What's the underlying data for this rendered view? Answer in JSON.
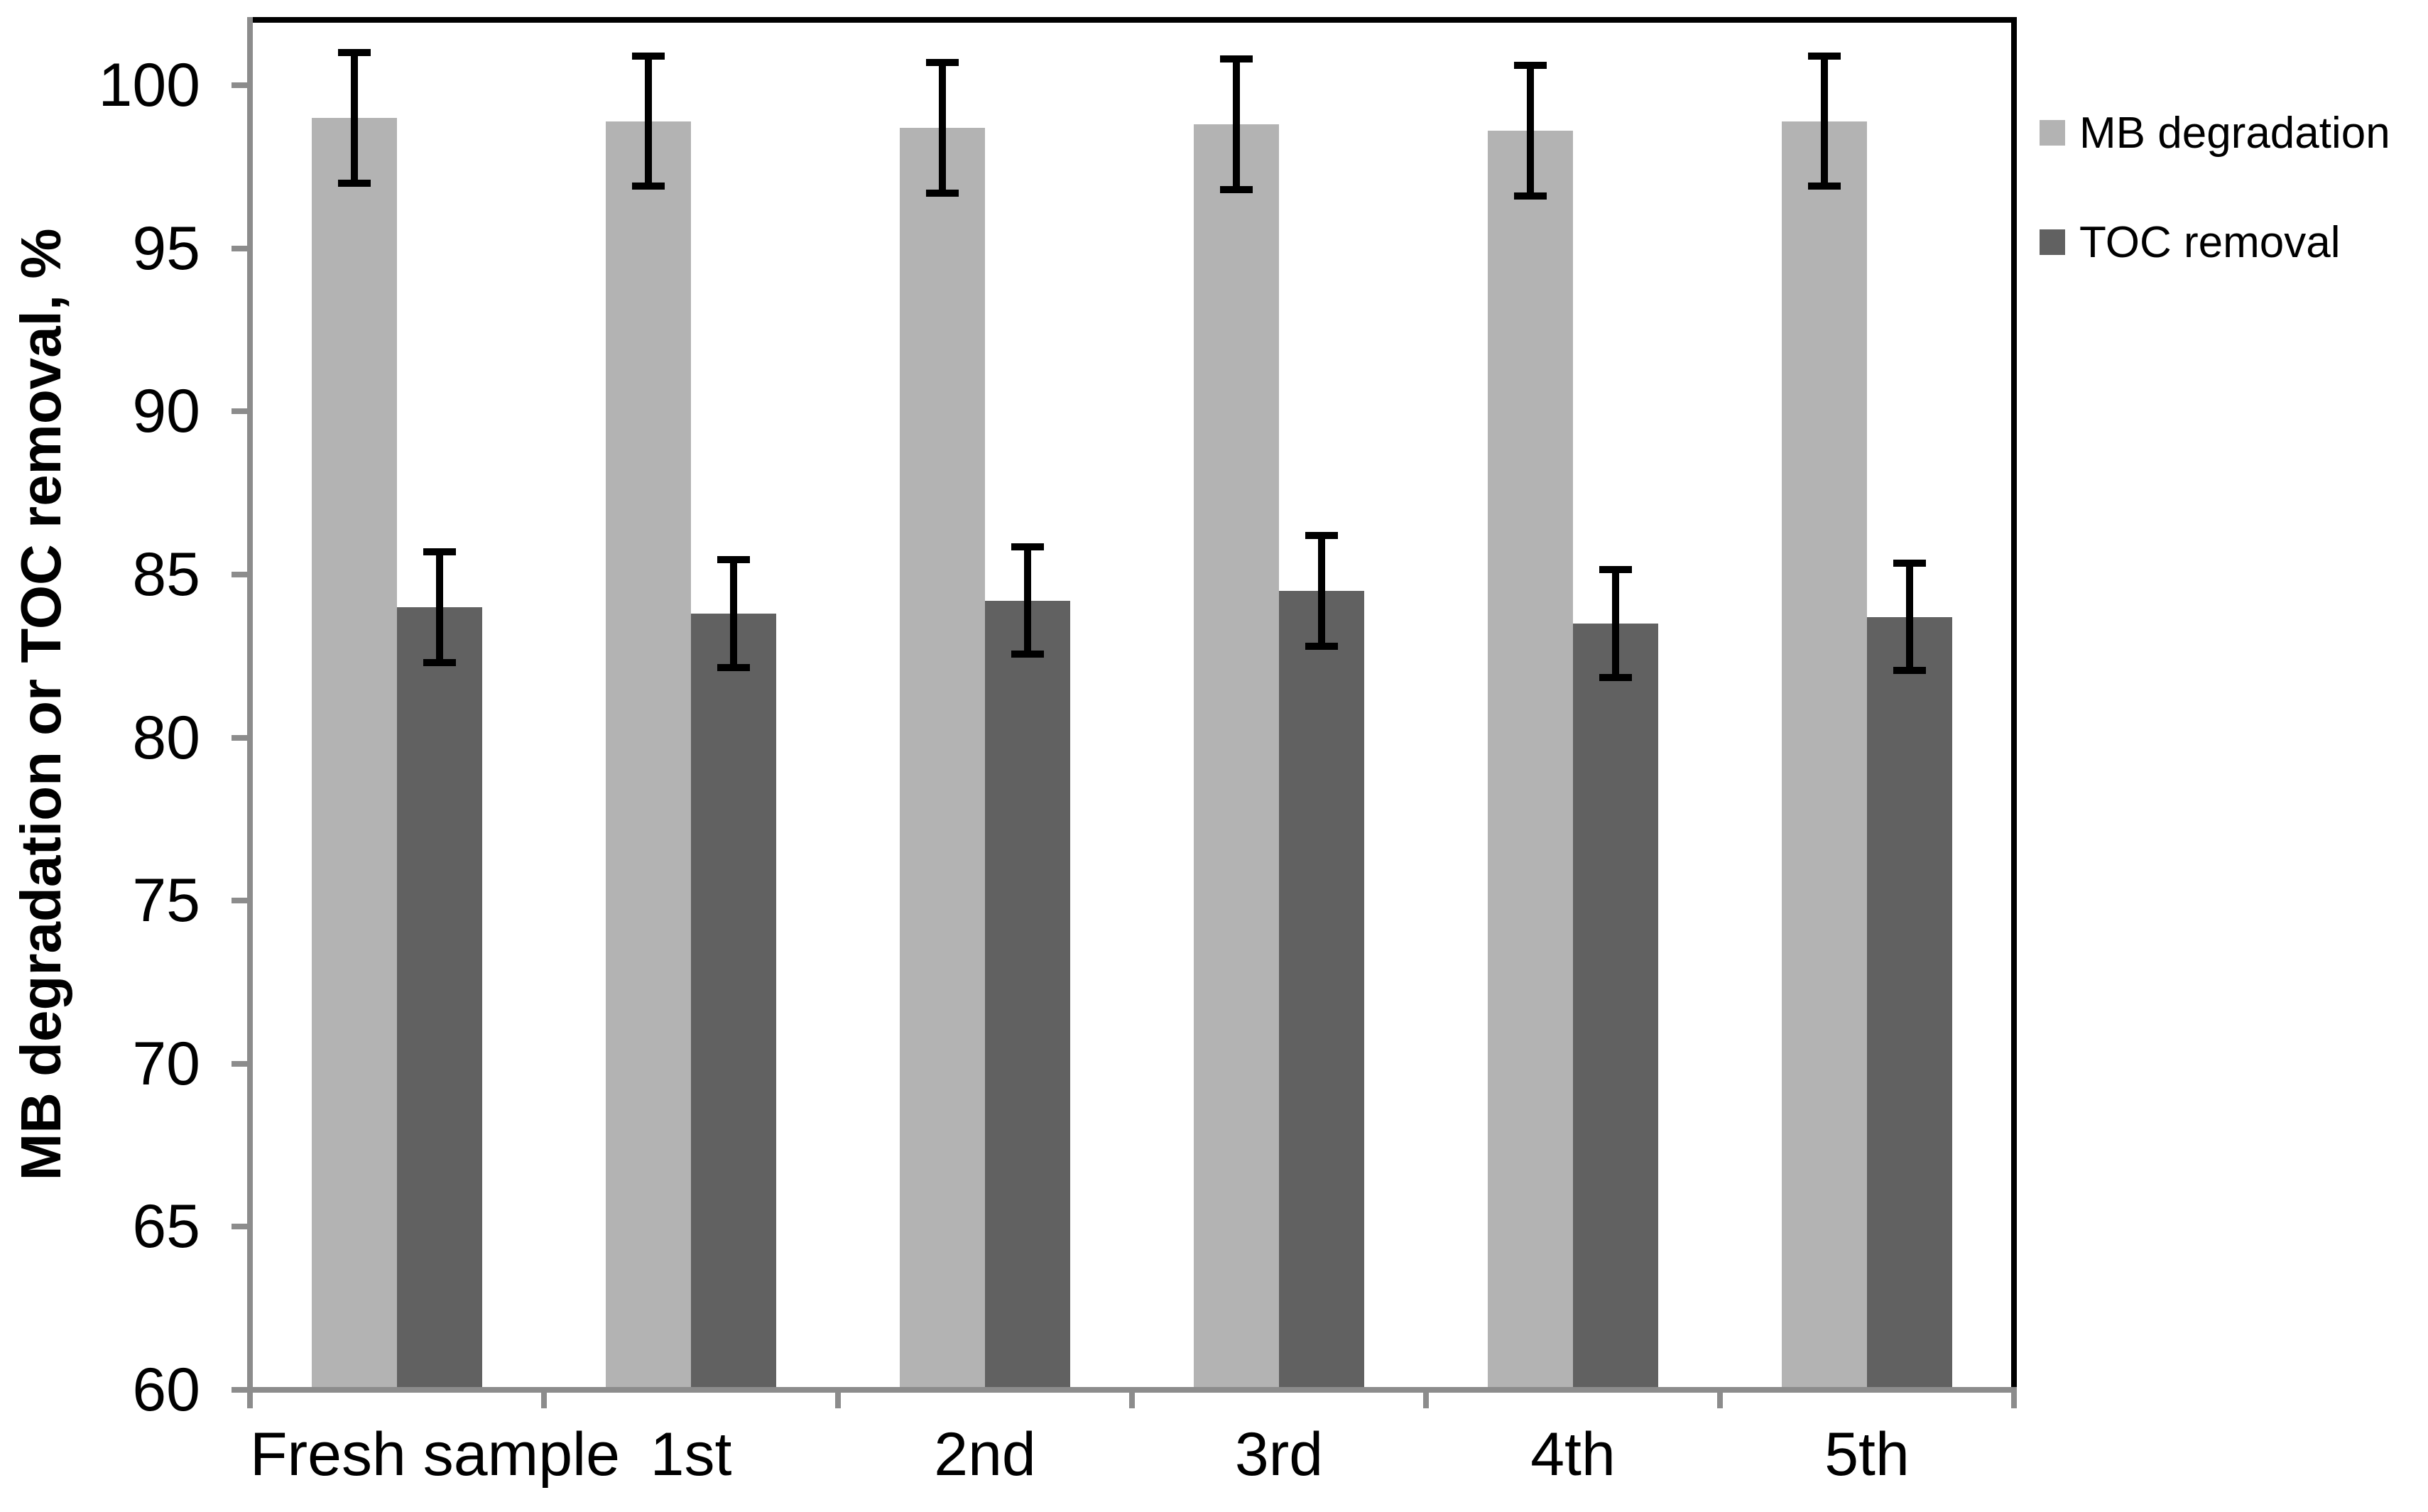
{
  "figure": {
    "kind": "grouped-bar-chart-with-error-bars",
    "background": "#ffffff"
  },
  "colors": {
    "frame": "#000000",
    "axis": "#8c8c8c",
    "text": "#000000",
    "mb_degradation_bar": "#b3b3b3",
    "toc_removal_bar": "#616161"
  },
  "y_axis": {
    "title": "MB degradation or TOC removal, %",
    "tick_labels": [
      "60",
      "65",
      "70",
      "75",
      "80",
      "85",
      "90",
      "95",
      "100"
    ]
  },
  "x_axis": {
    "category_labels": [
      "Fresh sample",
      "1st",
      "2nd",
      "3rd",
      "4th",
      "5th"
    ]
  },
  "legend": {
    "items": [
      {
        "label": "MB degradation",
        "color": "#b3b3b3"
      },
      {
        "label": "TOC removal",
        "color": "#616161"
      }
    ]
  },
  "chart_data": {
    "type": "bar",
    "title": "",
    "xlabel": "",
    "ylabel": "MB degradation or TOC removal, %",
    "categories": [
      "Fresh sample",
      "1st",
      "2nd",
      "3rd",
      "4th",
      "5th"
    ],
    "series": [
      {
        "name": "MB degradation",
        "color": "#b3b3b3",
        "values": [
          99.0,
          98.9,
          98.7,
          98.8,
          98.6,
          98.9
        ],
        "error_bars": [
          2.0,
          2.0,
          2.0,
          2.0,
          2.0,
          2.0
        ]
      },
      {
        "name": "TOC removal",
        "color": "#616161",
        "values": [
          84.0,
          83.8,
          84.2,
          84.5,
          83.5,
          83.7
        ],
        "error_bars": [
          1.7,
          1.65,
          1.65,
          1.7,
          1.65,
          1.65
        ]
      }
    ],
    "ylim": [
      60,
      102
    ],
    "yticks": [
      60,
      65,
      70,
      75,
      80,
      85,
      90,
      95,
      100
    ],
    "ytick_step": 5,
    "grid": false,
    "legend_position": "outside-right-top"
  }
}
